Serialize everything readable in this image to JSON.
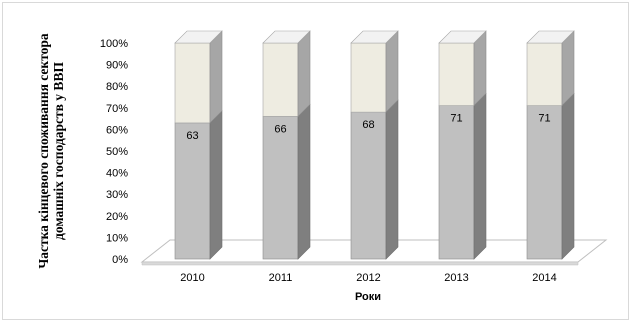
{
  "chart_data": {
    "type": "bar",
    "stacked": true,
    "percent_stacked": true,
    "three_d": true,
    "categories": [
      "2010",
      "2011",
      "2012",
      "2013",
      "2014"
    ],
    "values": [
      63,
      66,
      68,
      71,
      71
    ],
    "data_labels": [
      "63",
      "66",
      "68",
      "71",
      "71"
    ],
    "ylabel": "Частка кінцевого споживання сектора домашніх господарств у ВВП",
    "xlabel": "Роки",
    "yticks": [
      "0%",
      "10%",
      "20%",
      "30%",
      "40%",
      "50%",
      "60%",
      "70%",
      "80%",
      "90%",
      "100%"
    ],
    "ylim": [
      0,
      100
    ],
    "legend": "none",
    "colors": {
      "bar_front": "#c0c0c0",
      "bar_side": "#7f7f7f",
      "bar_top": "#d9d9d9",
      "rest_front": "#eeece1",
      "rest_side": "#a6a6a6",
      "rest_top": "#f2f2f2"
    }
  }
}
